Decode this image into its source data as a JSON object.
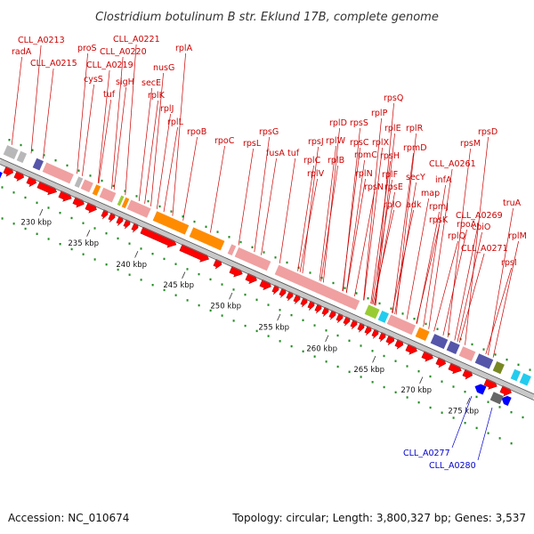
{
  "title": "Clostridium botulinum B str. Eklund 17B, complete genome",
  "footer": {
    "accession": "Accession: NC_010674",
    "stats": "Topology: circular; Length: 3,800,327 bp; Genes: 3,537"
  },
  "colors": {
    "forward_label": "#cc0000",
    "reverse_label": "#0000cc",
    "backbone": "#999999",
    "dots": "#228b22",
    "cds_forward": "#ff0000",
    "cds_reverse": "#0000ff",
    "bar_ribosomal": "#f0a0a0",
    "bar_translation": "#ff8c00",
    "bar_grey": "#b8b8b8",
    "bar_purple": "#5555aa",
    "bar_green": "#99cc33",
    "bar_cyan": "#22ccee",
    "bar_olive": "#778822"
  },
  "ticks": [
    "230 kbp",
    "235 kbp",
    "240 kbp",
    "245 kbp",
    "250 kbp",
    "255 kbp",
    "260 kbp",
    "265 kbp",
    "270 kbp",
    "275 kbp"
  ],
  "forward_genes": [
    "CLL_A0213",
    "radA",
    "CLL_A0215",
    "proS",
    "CLL_A0221",
    "CLL_A0220",
    "CLL_A0219",
    "cysS",
    "sigH",
    "tuf",
    "nusG",
    "secE",
    "rplA",
    "rplK",
    "rplJ",
    "rplL",
    "rpoB",
    "rpoC",
    "rpsL",
    "rpsG",
    "fusA",
    "tuf",
    "rpsJ",
    "rplC",
    "rplD",
    "rplW",
    "rplB",
    "rpsS",
    "rplV",
    "rpsC",
    "rplP",
    "rpmC",
    "rplX",
    "rpsQ",
    "rplN",
    "rplE",
    "rpsH",
    "rpsN",
    "rplR",
    "rplF",
    "rpsE",
    "rpmD",
    "rplO",
    "secY",
    "adk",
    "map",
    "infA",
    "rpmJ",
    "rpsM",
    "rpsK",
    "rpsD",
    "CLL_A0261",
    "rpoA",
    "rplQ",
    "CLL_A0269",
    "cbiO",
    "CLL_A0271",
    "truA",
    "rplM",
    "rpsI"
  ],
  "reverse_genes": [
    "CLL_A0277",
    "CLL_A0280"
  ]
}
